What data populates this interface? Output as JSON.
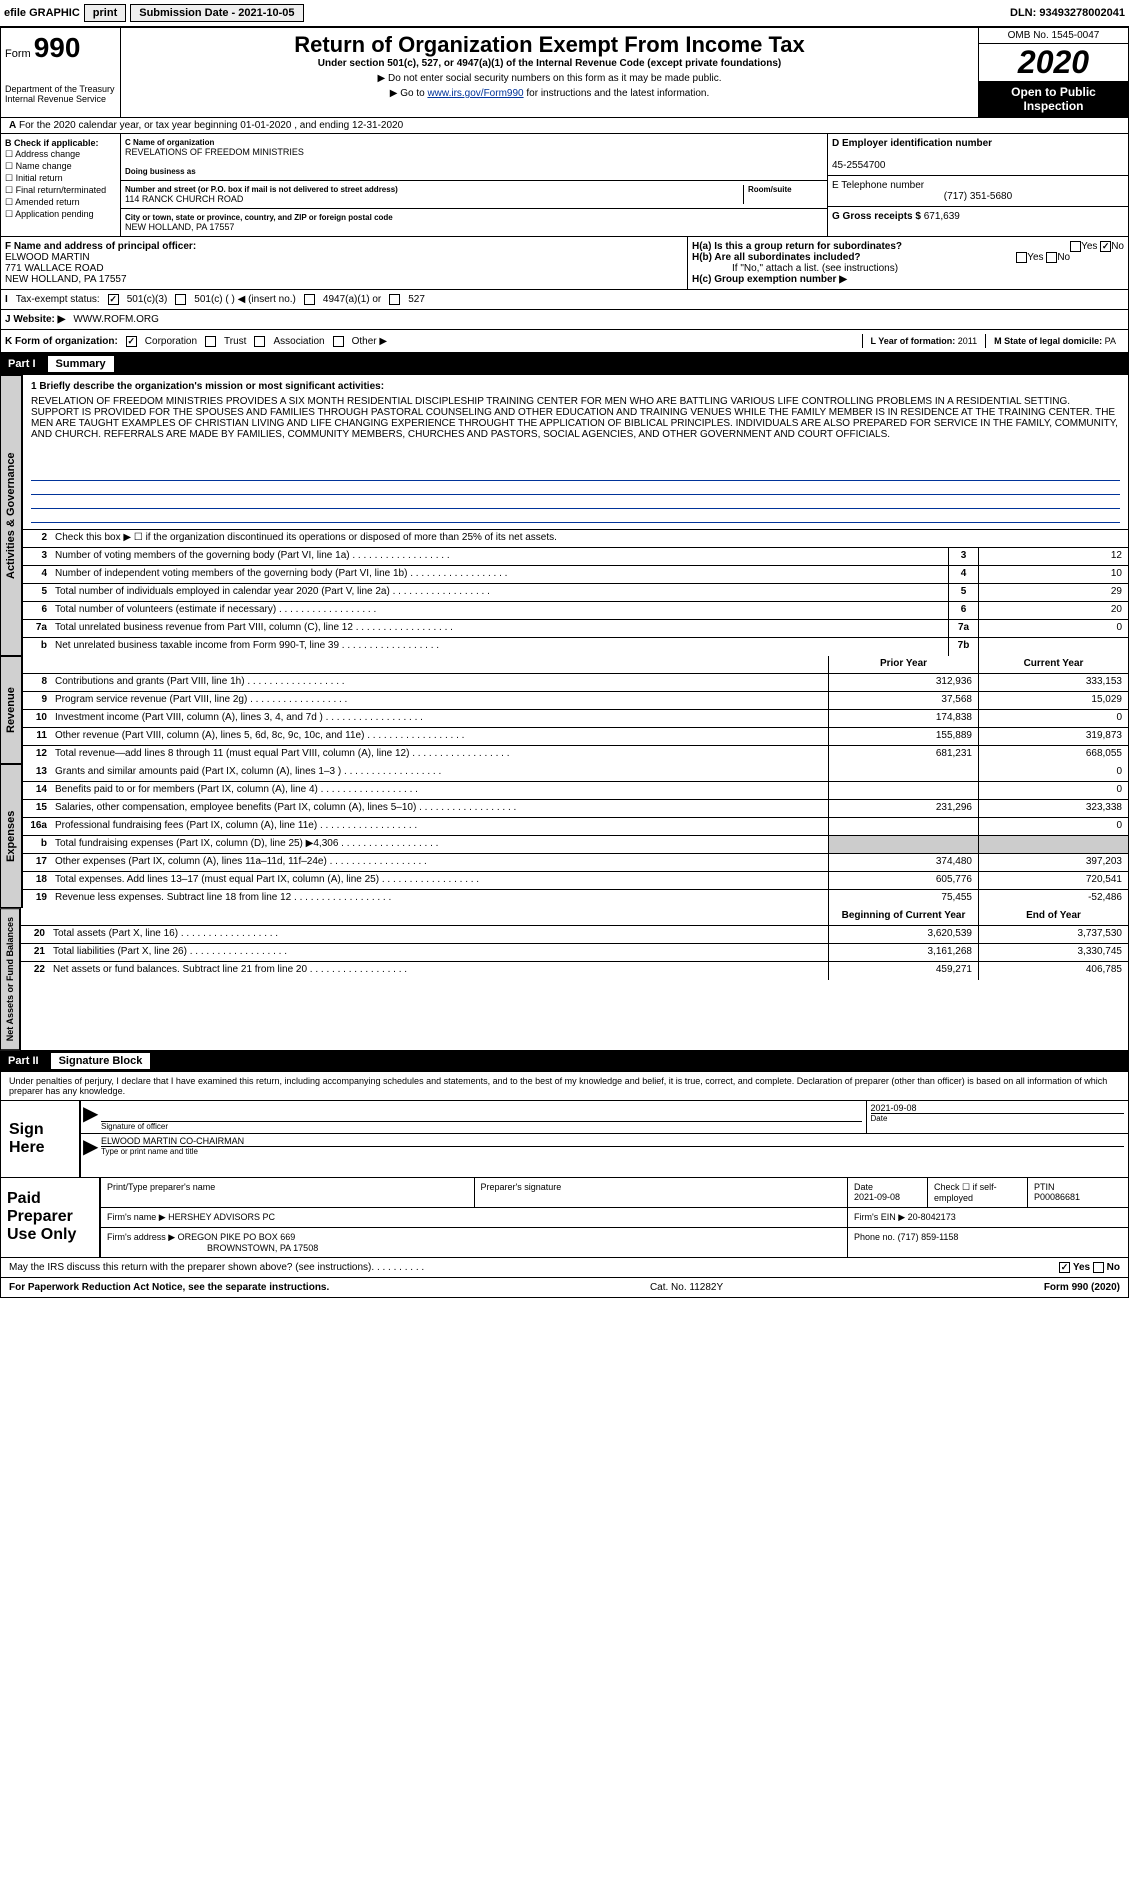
{
  "topbar": {
    "efile": "efile GRAPHIC",
    "print": "print",
    "submission": "Submission Date - 2021-10-05",
    "dln": "DLN: 93493278002041"
  },
  "header": {
    "form_prefix": "Form",
    "form_number": "990",
    "dept": "Department of the Treasury\nInternal Revenue Service",
    "title": "Return of Organization Exempt From Income Tax",
    "subtitle": "Under section 501(c), 527, or 4947(a)(1) of the Internal Revenue Code (except private foundations)",
    "note1": "▶ Do not enter social security numbers on this form as it may be made public.",
    "note2_pre": "▶ Go to ",
    "note2_link": "www.irs.gov/Form990",
    "note2_post": " for instructions and the latest information.",
    "omb": "OMB No. 1545-0047",
    "year": "2020",
    "open_public": "Open to Public Inspection"
  },
  "a_row": {
    "text": "For the 2020 calendar year, or tax year beginning 01-01-2020   , and ending 12-31-2020"
  },
  "col_b": {
    "label": "B Check if applicable:",
    "items": [
      "Address change",
      "Name change",
      "Initial return",
      "Final return/terminated",
      "Amended return",
      "Application pending"
    ]
  },
  "col_c": {
    "name_label": "C Name of organization",
    "name": "REVELATIONS OF FREEDOM MINISTRIES",
    "dba_label": "Doing business as",
    "dba": "",
    "street_label": "Number and street (or P.O. box if mail is not delivered to street address)",
    "street": "114 RANCK CHURCH ROAD",
    "room_label": "Room/suite",
    "city_label": "City or town, state or province, country, and ZIP or foreign postal code",
    "city": "NEW HOLLAND, PA  17557"
  },
  "col_d": {
    "d_label": "D Employer identification number",
    "d_val": "45-2554700",
    "e_label": "E Telephone number",
    "e_val": "(717) 351-5680",
    "g_label": "G Gross receipts $",
    "g_val": "671,639"
  },
  "f_block": {
    "f_label": "F  Name and address of principal officer:",
    "f_name": "ELWOOD MARTIN",
    "f_addr1": "771 WALLACE ROAD",
    "f_addr2": "NEW HOLLAND, PA  17557",
    "ha_label": "H(a)  Is this a group return for subordinates?",
    "hb_label": "H(b)  Are all subordinates included?",
    "h_note": "If \"No,\" attach a list. (see instructions)",
    "hc_label": "H(c)  Group exemption number ▶"
  },
  "tax_row": {
    "label": "Tax-exempt status:",
    "opts": [
      "501(c)(3)",
      "501(c) (   ) ◀ (insert no.)",
      "4947(a)(1) or",
      "527"
    ]
  },
  "web_row": {
    "label": "J   Website: ▶",
    "val": "WWW.ROFM.ORG"
  },
  "k_row": {
    "label": "K Form of organization:",
    "opts": [
      "Corporation",
      "Trust",
      "Association",
      "Other ▶"
    ],
    "l_label": "L Year of formation:",
    "l_val": "2011",
    "m_label": "M State of legal domicile:",
    "m_val": "PA"
  },
  "part1": {
    "label": "Part I",
    "title": "Summary",
    "q1_label": "1   Briefly describe the organization's mission or most significant activities:",
    "mission": "REVELATION OF FREEDOM MINISTRIES PROVIDES A SIX MONTH RESIDENTIAL DISCIPLESHIP TRAINING CENTER FOR MEN WHO ARE BATTLING VARIOUS LIFE CONTROLLING PROBLEMS IN A RESIDENTIAL SETTING. SUPPORT IS PROVIDED FOR THE SPOUSES AND FAMILIES THROUGH PASTORAL COUNSELING AND OTHER EDUCATION AND TRAINING VENUES WHILE THE FAMILY MEMBER IS IN RESIDENCE AT THE TRAINING CENTER. THE MEN ARE TAUGHT EXAMPLES OF CHRISTIAN LIVING AND LIFE CHANGING EXPERIENCE THROUGHT THE APPLICATION OF BIBLICAL PRINCIPLES. INDIVIDUALS ARE ALSO PREPARED FOR SERVICE IN THE FAMILY, COMMUNITY, AND CHURCH. REFERRALS ARE MADE BY FAMILIES, COMMUNITY MEMBERS, CHURCHES AND PASTORS, SOCIAL AGENCIES, AND OTHER GOVERNMENT AND COURT OFFICIALS.",
    "q2": "Check this box ▶ ☐ if the organization discontinued its operations or disposed of more than 25% of its net assets."
  },
  "gov_rows": [
    {
      "n": "3",
      "desc": "Number of voting members of the governing body (Part VI, line 1a)",
      "box": "3",
      "v": "12"
    },
    {
      "n": "4",
      "desc": "Number of independent voting members of the governing body (Part VI, line 1b)",
      "box": "4",
      "v": "10"
    },
    {
      "n": "5",
      "desc": "Total number of individuals employed in calendar year 2020 (Part V, line 2a)",
      "box": "5",
      "v": "29"
    },
    {
      "n": "6",
      "desc": "Total number of volunteers (estimate if necessary)",
      "box": "6",
      "v": "20"
    },
    {
      "n": "7a",
      "desc": "Total unrelated business revenue from Part VIII, column (C), line 12",
      "box": "7a",
      "v": "0"
    },
    {
      "n": "b",
      "desc": "Net unrelated business taxable income from Form 990-T, line 39",
      "box": "7b",
      "v": ""
    }
  ],
  "rev_head": {
    "prior": "Prior Year",
    "current": "Current Year"
  },
  "rev_rows": [
    {
      "n": "8",
      "desc": "Contributions and grants (Part VIII, line 1h)",
      "p": "312,936",
      "c": "333,153"
    },
    {
      "n": "9",
      "desc": "Program service revenue (Part VIII, line 2g)",
      "p": "37,568",
      "c": "15,029"
    },
    {
      "n": "10",
      "desc": "Investment income (Part VIII, column (A), lines 3, 4, and 7d )",
      "p": "174,838",
      "c": "0"
    },
    {
      "n": "11",
      "desc": "Other revenue (Part VIII, column (A), lines 5, 6d, 8c, 9c, 10c, and 11e)",
      "p": "155,889",
      "c": "319,873"
    },
    {
      "n": "12",
      "desc": "Total revenue—add lines 8 through 11 (must equal Part VIII, column (A), line 12)",
      "p": "681,231",
      "c": "668,055"
    }
  ],
  "exp_rows": [
    {
      "n": "13",
      "desc": "Grants and similar amounts paid (Part IX, column (A), lines 1–3 )",
      "p": "",
      "c": "0"
    },
    {
      "n": "14",
      "desc": "Benefits paid to or for members (Part IX, column (A), line 4)",
      "p": "",
      "c": "0"
    },
    {
      "n": "15",
      "desc": "Salaries, other compensation, employee benefits (Part IX, column (A), lines 5–10)",
      "p": "231,296",
      "c": "323,338"
    },
    {
      "n": "16a",
      "desc": "Professional fundraising fees (Part IX, column (A), line 11e)",
      "p": "",
      "c": "0"
    },
    {
      "n": "b",
      "desc": "Total fundraising expenses (Part IX, column (D), line 25) ▶4,306",
      "p": "",
      "c": "",
      "shaded": true
    },
    {
      "n": "17",
      "desc": "Other expenses (Part IX, column (A), lines 11a–11d, 11f–24e)",
      "p": "374,480",
      "c": "397,203"
    },
    {
      "n": "18",
      "desc": "Total expenses. Add lines 13–17 (must equal Part IX, column (A), line 25)",
      "p": "605,776",
      "c": "720,541"
    },
    {
      "n": "19",
      "desc": "Revenue less expenses. Subtract line 18 from line 12",
      "p": "75,455",
      "c": "-52,486"
    }
  ],
  "bal_head": {
    "begin": "Beginning of Current Year",
    "end": "End of Year"
  },
  "bal_rows": [
    {
      "n": "20",
      "desc": "Total assets (Part X, line 16)",
      "p": "3,620,539",
      "c": "3,737,530"
    },
    {
      "n": "21",
      "desc": "Total liabilities (Part X, line 26)",
      "p": "3,161,268",
      "c": "3,330,745"
    },
    {
      "n": "22",
      "desc": "Net assets or fund balances. Subtract line 21 from line 20",
      "p": "459,271",
      "c": "406,785"
    }
  ],
  "side_labels": {
    "gov": "Activities & Governance",
    "rev": "Revenue",
    "exp": "Expenses",
    "bal": "Net Assets or Fund Balances"
  },
  "part2": {
    "label": "Part II",
    "title": "Signature Block",
    "penalty": "Under penalties of perjury, I declare that I have examined this return, including accompanying schedules and statements, and to the best of my knowledge and belief, it is true, correct, and complete. Declaration of preparer (other than officer) is based on all information of which preparer has any knowledge."
  },
  "sign": {
    "here": "Sign Here",
    "sig_label": "Signature of officer",
    "date_label": "Date",
    "date_val": "2021-09-08",
    "name": "ELWOOD MARTIN  CO-CHAIRMAN",
    "name_label": "Type or print name and title"
  },
  "prep": {
    "label": "Paid Preparer Use Only",
    "r1": {
      "c1_label": "Print/Type preparer's name",
      "c2_label": "Preparer's signature",
      "c3_label": "Date",
      "c3_val": "2021-09-08",
      "c4_label": "Check ☐ if self-employed",
      "c5_label": "PTIN",
      "c5_val": "P00086681"
    },
    "r2": {
      "c1_label": "Firm's name    ▶",
      "c1_val": "HERSHEY ADVISORS PC",
      "c2_label": "Firm's EIN ▶",
      "c2_val": "20-8042173"
    },
    "r3": {
      "c1_label": "Firm's address ▶",
      "c1_val": "OREGON PIKE PO BOX 669",
      "c1_val2": "BROWNSTOWN, PA  17508",
      "c2_label": "Phone no.",
      "c2_val": "(717) 859-1158"
    }
  },
  "footer": {
    "discuss": "May the IRS discuss this return with the preparer shown above? (see instructions)",
    "yes": "Yes",
    "no": "No",
    "paperwork": "For Paperwork Reduction Act Notice, see the separate instructions.",
    "cat": "Cat. No. 11282Y",
    "form": "Form 990 (2020)"
  }
}
